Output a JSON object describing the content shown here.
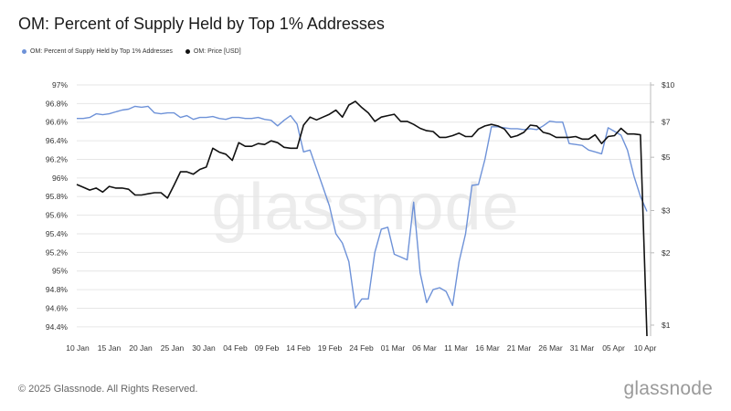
{
  "title": "OM: Percent of Supply Held by Top 1% Addresses",
  "legend": [
    {
      "label": "OM: Percent of Supply Held by Top 1% Addresses",
      "color": "#6e92d8"
    },
    {
      "label": "OM: Price [USD]",
      "color": "#111111"
    }
  ],
  "watermark": "glassnode",
  "footer": "© 2025 Glassnode. All Rights Reserved.",
  "brand": "glassnode",
  "chart_data": {
    "type": "line",
    "x_ticks": [
      "10 Jan",
      "15 Jan",
      "20 Jan",
      "25 Jan",
      "30 Jan",
      "04 Feb",
      "09 Feb",
      "14 Feb",
      "19 Feb",
      "24 Feb",
      "01 Mar",
      "06 Mar",
      "11 Mar",
      "16 Mar",
      "21 Mar",
      "26 Mar",
      "31 Mar",
      "05 Apr",
      "10 Apr"
    ],
    "y_left_ticks": [
      "97%",
      "96.8%",
      "96.6%",
      "96.4%",
      "96.2%",
      "96%",
      "95.8%",
      "95.6%",
      "95.4%",
      "95.2%",
      "95%",
      "94.8%",
      "94.6%",
      "94.4%"
    ],
    "y_left_range": [
      94.3,
      97.0
    ],
    "y_right_ticks": [
      {
        "value": 10,
        "label": "$10"
      },
      {
        "value": 7,
        "label": "$7"
      },
      {
        "value": 5,
        "label": "$5"
      },
      {
        "value": 3,
        "label": "$3"
      },
      {
        "value": 2,
        "label": "$2"
      },
      {
        "value": 1,
        "label": "$1"
      }
    ],
    "y_right_range": [
      0.9,
      10
    ],
    "y_right_scale": "log",
    "series": [
      {
        "name": "OM: Percent of Supply Held by Top 1% Addresses",
        "axis": "left",
        "color": "#6e92d8",
        "values": [
          96.64,
          96.64,
          96.65,
          96.69,
          96.68,
          96.69,
          96.71,
          96.73,
          96.74,
          96.77,
          96.76,
          96.77,
          96.7,
          96.69,
          96.7,
          96.7,
          96.65,
          96.67,
          96.63,
          96.65,
          96.65,
          96.66,
          96.64,
          96.63,
          96.65,
          96.65,
          96.64,
          96.64,
          96.65,
          96.63,
          96.62,
          96.56,
          96.62,
          96.67,
          96.58,
          96.28,
          96.3,
          96.1,
          95.9,
          95.7,
          95.4,
          95.3,
          95.1,
          94.6,
          94.7,
          94.7,
          95.2,
          95.45,
          95.47,
          95.18,
          95.15,
          95.12,
          95.74,
          94.98,
          94.66,
          94.8,
          94.82,
          94.78,
          94.63,
          95.1,
          95.4,
          95.92,
          95.93,
          96.2,
          96.55,
          96.55,
          96.54,
          96.53,
          96.53,
          96.52,
          96.53,
          96.52,
          96.56,
          96.61,
          96.6,
          96.6,
          96.37,
          96.36,
          96.35,
          96.3,
          96.28,
          96.26,
          96.54,
          96.5,
          96.46,
          96.3,
          96.02,
          95.8,
          95.64
        ]
      },
      {
        "name": "OM: Price [USD]",
        "axis": "right",
        "color": "#111111",
        "values": [
          3.85,
          3.75,
          3.65,
          3.72,
          3.58,
          3.78,
          3.72,
          3.72,
          3.68,
          3.48,
          3.48,
          3.52,
          3.56,
          3.56,
          3.38,
          3.82,
          4.35,
          4.35,
          4.25,
          4.45,
          4.55,
          5.45,
          5.25,
          5.15,
          4.85,
          5.75,
          5.55,
          5.55,
          5.7,
          5.65,
          5.85,
          5.75,
          5.5,
          5.45,
          5.45,
          6.8,
          7.35,
          7.15,
          7.35,
          7.55,
          7.85,
          7.35,
          8.25,
          8.55,
          8.05,
          7.65,
          7.05,
          7.35,
          7.45,
          7.55,
          7.05,
          7.05,
          6.85,
          6.6,
          6.45,
          6.4,
          6.05,
          6.05,
          6.15,
          6.3,
          6.1,
          6.1,
          6.55,
          6.75,
          6.85,
          6.75,
          6.55,
          6.05,
          6.15,
          6.35,
          6.8,
          6.75,
          6.35,
          6.25,
          6.05,
          6.05,
          6.05,
          6.1,
          5.95,
          5.95,
          6.2,
          5.7,
          6.1,
          6.15,
          6.6,
          6.25,
          6.25,
          6.2,
          0.9
        ]
      }
    ],
    "grid": "horizontal",
    "legend_position": "top-left"
  }
}
